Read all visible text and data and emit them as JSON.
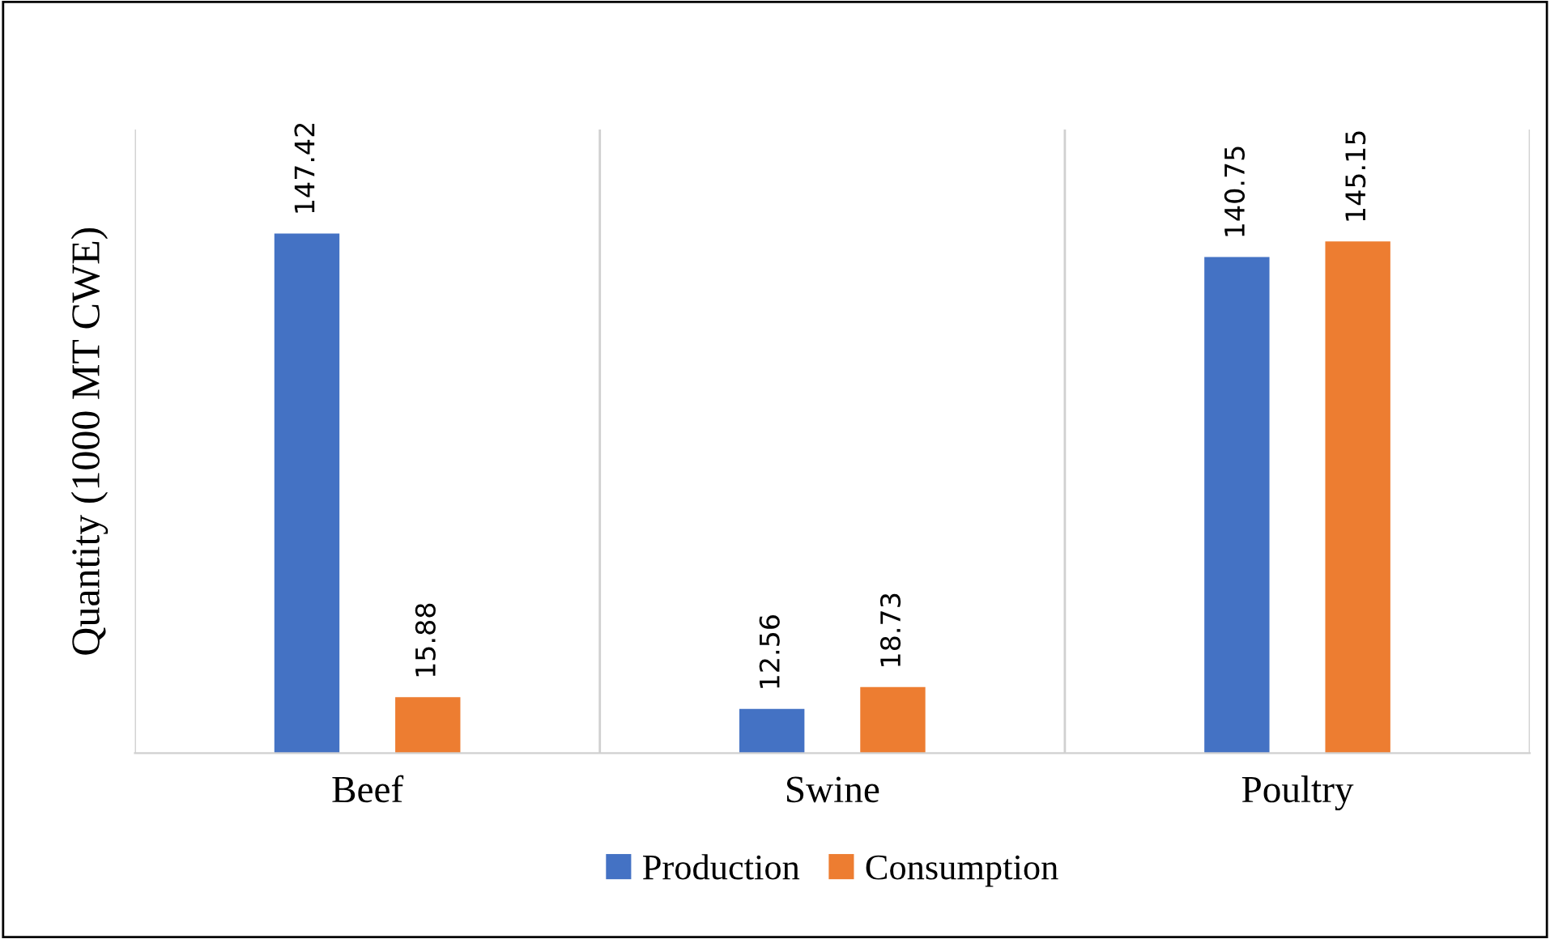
{
  "chart_data": {
    "type": "bar",
    "ylabel": "Quantity (1000 MT CWE)",
    "categories": [
      "Beef",
      "Swine",
      "Poultry"
    ],
    "series": [
      {
        "name": "Production",
        "color": "#4472c4",
        "values": [
          147.42,
          12.56,
          140.75
        ]
      },
      {
        "name": "Consumption",
        "color": "#ed7d31",
        "values": [
          15.88,
          18.73,
          145.15
        ]
      }
    ],
    "data_labels": true,
    "legend": "bottom",
    "grid": false
  }
}
